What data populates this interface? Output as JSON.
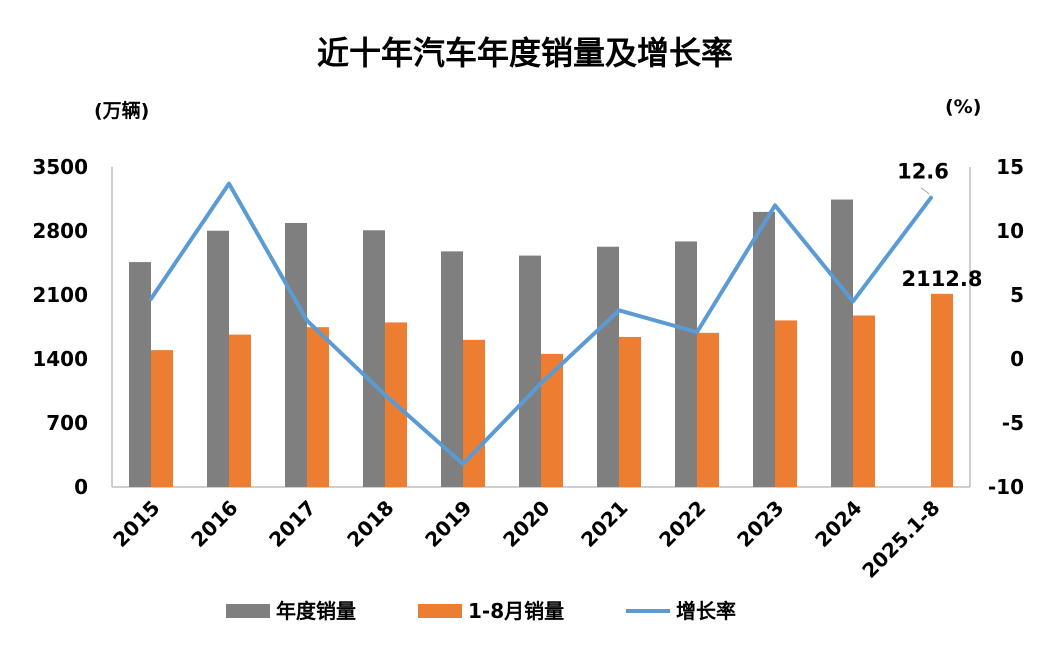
{
  "chart_data": {
    "type": "bar",
    "title": "近十年汽车年度销量及增长率",
    "y_left_unit": "(万辆)",
    "y_right_unit": "(%)",
    "categories": [
      "2015",
      "2016",
      "2017",
      "2018",
      "2019",
      "2020",
      "2021",
      "2022",
      "2023",
      "2024",
      "2025.1-8"
    ],
    "y_left_ticks": [
      "0",
      "700",
      "1400",
      "2100",
      "2800",
      "3500"
    ],
    "y_right_ticks": [
      "-10",
      "-5",
      "0",
      "5",
      "10",
      "15"
    ],
    "ylim_left": [
      0,
      3500
    ],
    "ylim_right": [
      -10,
      15
    ],
    "series": [
      {
        "name": "年度销量",
        "type": "bar",
        "axis": "left",
        "color": "#7f7f7f",
        "values": [
          2460,
          2803,
          2888,
          2808,
          2577,
          2531,
          2628,
          2686,
          3009,
          3144,
          null
        ]
      },
      {
        "name": "1-8月销量",
        "type": "bar",
        "axis": "left",
        "color": "#ed7d31",
        "values": [
          1497,
          1667,
          1748,
          1800,
          1610,
          1456,
          1641,
          1686,
          1822,
          1876,
          2112.8
        ]
      },
      {
        "name": "增长率",
        "type": "line",
        "axis": "right",
        "color": "#5b9bd5",
        "values": [
          4.7,
          13.7,
          3.0,
          -2.8,
          -8.2,
          -1.9,
          3.8,
          2.1,
          12.0,
          4.5,
          12.6
        ]
      }
    ],
    "data_labels": [
      {
        "series": "1-8月销量",
        "index": 10,
        "text": "2112.8"
      },
      {
        "series": "增长率",
        "index": 10,
        "text": "12.6"
      }
    ],
    "legend_position": "bottom",
    "grid": false
  }
}
